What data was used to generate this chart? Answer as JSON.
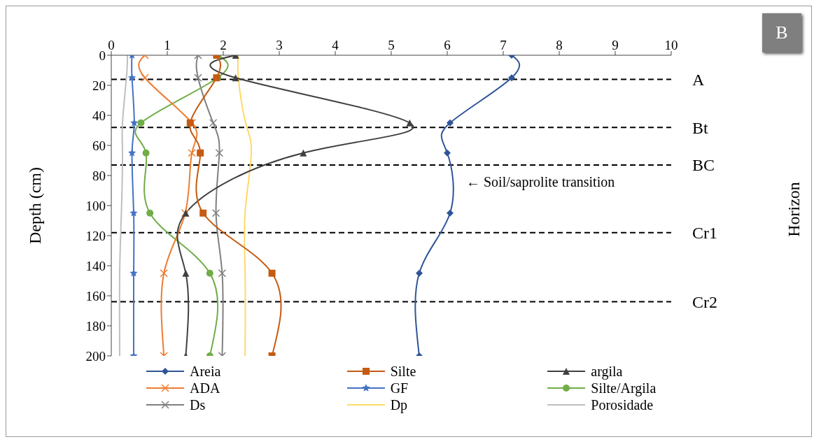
{
  "chart_data": {
    "type": "line",
    "ylabel": "Depth (cm)",
    "xlim": [
      0,
      10
    ],
    "xticks": [
      0,
      1,
      2,
      3,
      4,
      5,
      6,
      7,
      8,
      9,
      10
    ],
    "ylim": [
      200,
      0
    ],
    "yticks": [
      0,
      20,
      40,
      60,
      80,
      100,
      120,
      140,
      160,
      180,
      200
    ],
    "legend": "bottom",
    "line_style": "solid",
    "series": [
      {
        "name": "Areia",
        "color": "#2f5597",
        "marker": "diamond",
        "x": [
          7.15,
          7.15,
          6.05,
          6.0,
          6.05,
          5.5,
          5.5
        ],
        "values": [
          0,
          15,
          45,
          65,
          105,
          145,
          200
        ]
      },
      {
        "name": "Silte",
        "color": "#c55a11",
        "marker": "square",
        "x": [
          1.88,
          1.88,
          1.41,
          1.59,
          1.64,
          2.87,
          2.87
        ],
        "values": [
          0,
          15,
          45,
          65,
          105,
          145,
          200
        ]
      },
      {
        "name": "argila",
        "color": "#404040",
        "marker": "triangle",
        "x": [
          2.22,
          2.22,
          5.33,
          3.43,
          1.33,
          1.33,
          1.33
        ],
        "values": [
          0,
          15,
          45,
          65,
          105,
          145,
          200
        ]
      },
      {
        "name": "ADA",
        "color": "#ed7d31",
        "marker": "cross",
        "x": [
          0.6,
          0.6,
          1.44,
          1.44,
          1.32,
          0.94,
          0.94
        ],
        "values": [
          0,
          15,
          45,
          65,
          105,
          145,
          200
        ]
      },
      {
        "name": "GF",
        "color": "#4472c4",
        "marker": "star",
        "x": [
          0.37,
          0.37,
          0.41,
          0.37,
          0.4,
          0.4,
          0.4
        ],
        "values": [
          0,
          15,
          45,
          65,
          105,
          145,
          200
        ]
      },
      {
        "name": "Silte/Argila",
        "color": "#70ad47",
        "marker": "circle",
        "x": [
          1.9,
          1.9,
          0.53,
          0.62,
          0.69,
          1.76,
          1.76
        ],
        "values": [
          0,
          15,
          45,
          65,
          105,
          145,
          200
        ]
      },
      {
        "name": "Ds",
        "color": "#7f7f7f",
        "marker": "cross",
        "x": [
          1.55,
          1.55,
          1.82,
          1.93,
          1.87,
          1.98,
          1.98
        ],
        "values": [
          0,
          15,
          45,
          65,
          105,
          145,
          200
        ]
      },
      {
        "name": "Dp",
        "color": "#ffd966",
        "marker": "none",
        "x": [
          2.27,
          2.27,
          2.4,
          2.5,
          2.39,
          2.39,
          2.39
        ],
        "values": [
          0,
          15,
          45,
          65,
          105,
          145,
          200
        ]
      },
      {
        "name": "Porosidade",
        "color": "#bfbfbf",
        "marker": "none",
        "x": [
          0.29,
          0.27,
          0.2,
          0.2,
          0.18,
          0.15,
          0.15
        ],
        "values": [
          0,
          15,
          45,
          65,
          105,
          145,
          200
        ]
      }
    ],
    "ref_lines": [
      {
        "axis": "y",
        "value": 16,
        "label": "A",
        "color": "#000000",
        "line_style": "dashed"
      },
      {
        "axis": "y",
        "value": 48,
        "label": "Bt",
        "color": "#000000",
        "line_style": "dashed"
      },
      {
        "axis": "y",
        "value": 73,
        "label": "BC",
        "color": "#000000",
        "line_style": "dashed"
      },
      {
        "axis": "y",
        "value": 118,
        "label": "Cr1",
        "color": "#000000",
        "line_style": "dashed"
      },
      {
        "axis": "y",
        "value": 164,
        "label": "Cr2",
        "color": "#000000",
        "line_style": "dashed"
      }
    ],
    "annotations": [
      "← Soil/saprolite transition",
      "Horizon",
      "B"
    ]
  }
}
